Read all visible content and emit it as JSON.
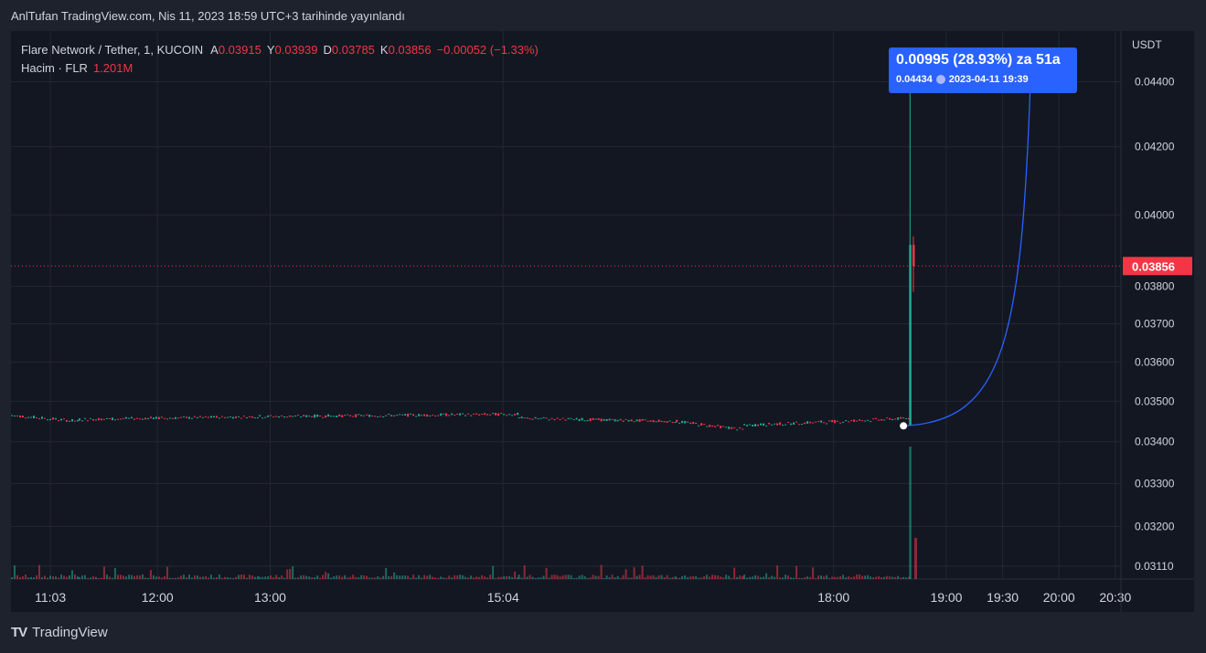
{
  "caption": "AnlTufan TradingView.com, Nis 11, 2023 18:59 UTC+3 tarihinde yayınlandı",
  "legend": {
    "symbol": "Flare Network / Tether, 1, KUCOIN",
    "open_label": "A",
    "open": "0.03915",
    "high_label": "Y",
    "high": "0.03939",
    "low_label": "D",
    "low": "0.03785",
    "close_label": "K",
    "close": "0.03856",
    "change": "−0.00052 (−1.33%)",
    "volume_label": "Hacim · FLR",
    "volume_value": "1.201M"
  },
  "currency": "USDT",
  "logo_text": "TradingView",
  "callout": {
    "title": "0.00995 (28.93%) za 51a",
    "price": "0.04434",
    "datetime": "2023-04-11   19:39"
  },
  "colors": {
    "background": "#131722",
    "grid": "#242733",
    "up": "#22ab94",
    "down": "#f23645",
    "projection": "#2962ff",
    "price_tag": "#f23645"
  },
  "chart_data": {
    "type": "candlestick",
    "y_scale": "log",
    "yticks": [
      "0.04400",
      "0.04200",
      "0.04000",
      "0.03800",
      "0.03700",
      "0.03600",
      "0.03500",
      "0.03400",
      "0.03300",
      "0.03200",
      "0.03110"
    ],
    "ytick_values": [
      0.044,
      0.042,
      0.04,
      0.038,
      0.037,
      0.036,
      0.035,
      0.034,
      0.033,
      0.032,
      0.0311
    ],
    "y_range": [
      0.0311,
      0.0448
    ],
    "current_price": "0.03856",
    "current_price_value": 0.03856,
    "xticks": [
      "11:03",
      "12:00",
      "13:00",
      "15:04",
      "18:00",
      "19:00",
      "19:30",
      "20:00",
      "20:30"
    ],
    "xtick_hours": [
      11.05,
      12.0,
      13.0,
      15.067,
      18.0,
      19.0,
      19.5,
      20.0,
      20.5
    ],
    "x_range": [
      10.7,
      20.55
    ],
    "baseline_price": 0.03455,
    "baseline_segments": [
      {
        "from": 10.7,
        "to": 11.3,
        "start": 0.03465,
        "end": 0.0345
      },
      {
        "from": 11.3,
        "to": 12.9,
        "start": 0.03455,
        "end": 0.03462
      },
      {
        "from": 12.9,
        "to": 15.2,
        "start": 0.03462,
        "end": 0.03468
      },
      {
        "from": 15.2,
        "to": 16.6,
        "start": 0.03458,
        "end": 0.0345
      },
      {
        "from": 16.6,
        "to": 17.2,
        "start": 0.0345,
        "end": 0.0343
      },
      {
        "from": 17.2,
        "to": 18.67,
        "start": 0.0344,
        "end": 0.03458
      }
    ],
    "spike": {
      "time": 18.67,
      "low": 0.0344,
      "high": 0.0443,
      "open": 0.0344,
      "close": 0.03915
    },
    "last_candle": {
      "time": 18.7,
      "open": 0.03915,
      "high": 0.03939,
      "low": 0.03785,
      "close": 0.03856
    },
    "projection": {
      "from_time": 18.62,
      "from_price": 0.03439,
      "to_time": 19.75,
      "to_price": 0.04434
    }
  }
}
